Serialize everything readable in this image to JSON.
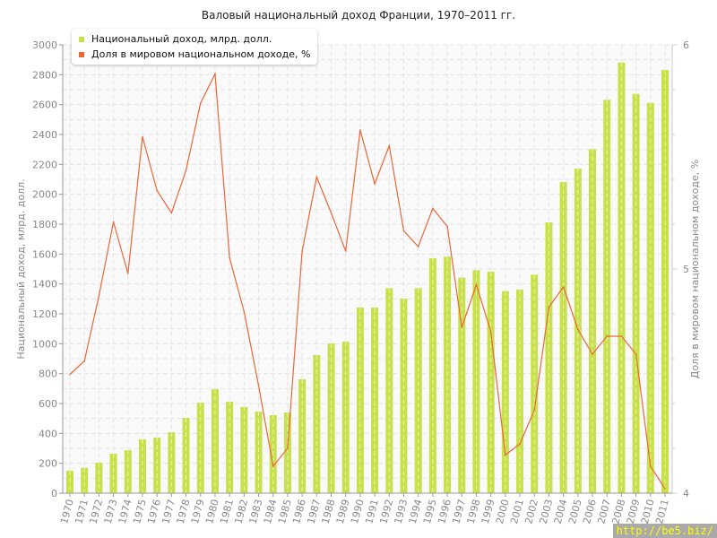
{
  "colors": {
    "bars": "#c8e04a",
    "line": "#e8683a"
  },
  "chart_data": {
    "type": "bar+line",
    "title": "Валовый национальный доход Франции, 1970–2011 гг.",
    "ylabel": "Национальный доход, млрд. долл.",
    "y2label": "Доля в мировом национальном доходе, %",
    "ylim": [
      0,
      3000
    ],
    "y2lim": [
      4,
      6
    ],
    "yticks": [
      0,
      200,
      400,
      600,
      800,
      1000,
      1200,
      1400,
      1600,
      1800,
      2000,
      2200,
      2400,
      2600,
      2800,
      3000
    ],
    "y2ticks": [
      4,
      5,
      6
    ],
    "grid": true,
    "legend_position": "top-left",
    "categories": [
      "1970",
      "1971",
      "1972",
      "1973",
      "1974",
      "1975",
      "1976",
      "1977",
      "1978",
      "1979",
      "1980",
      "1981",
      "1982",
      "1983",
      "1984",
      "1985",
      "1986",
      "1987",
      "1988",
      "1989",
      "1990",
      "1991",
      "1992",
      "1993",
      "1994",
      "1995",
      "1996",
      "1997",
      "1998",
      "1999",
      "2000",
      "2001",
      "2002",
      "2003",
      "2004",
      "2005",
      "2006",
      "2007",
      "2008",
      "2009",
      "2010",
      "2011"
    ],
    "series": [
      {
        "name": "Национальный доход, млрд. долл.",
        "type": "bar",
        "axis": "left",
        "values": [
          150,
          170,
          204,
          264,
          288,
          360,
          372,
          408,
          504,
          606,
          696,
          612,
          576,
          546,
          522,
          540,
          762,
          924,
          1002,
          1014,
          1242,
          1242,
          1372,
          1302,
          1372,
          1572,
          1582,
          1442,
          1492,
          1482,
          1352,
          1362,
          1462,
          1812,
          2082,
          2172,
          2302,
          2632,
          2882,
          2672,
          2612,
          2832
        ]
      },
      {
        "name": "Доля в мировом национальном доходе, %",
        "type": "line",
        "axis": "right",
        "values": [
          4.53,
          4.59,
          4.88,
          5.21,
          4.98,
          5.59,
          5.35,
          5.25,
          5.44,
          5.74,
          5.87,
          5.05,
          4.81,
          4.48,
          4.12,
          4.2,
          5.08,
          5.41,
          5.25,
          5.08,
          5.62,
          5.38,
          5.55,
          5.17,
          5.1,
          5.27,
          5.19,
          4.74,
          4.93,
          4.72,
          4.17,
          4.22,
          4.37,
          4.83,
          4.92,
          4.73,
          4.62,
          4.7,
          4.7,
          4.62,
          4.12,
          4.02
        ]
      }
    ]
  },
  "watermark": "http://be5.biz/"
}
